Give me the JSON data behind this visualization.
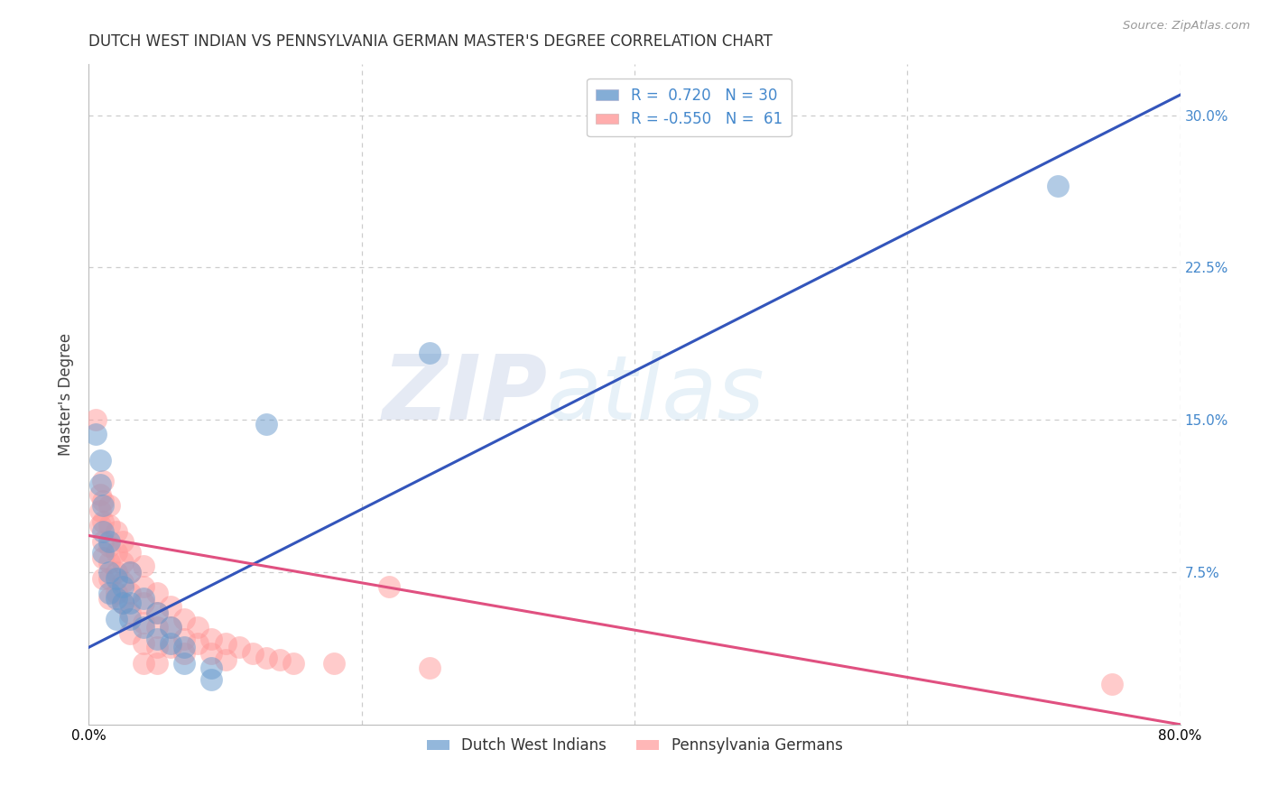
{
  "title": "DUTCH WEST INDIAN VS PENNSYLVANIA GERMAN MASTER'S DEGREE CORRELATION CHART",
  "source": "Source: ZipAtlas.com",
  "ylabel": "Master's Degree",
  "xlim": [
    0.0,
    0.8
  ],
  "ylim": [
    0.0,
    0.325
  ],
  "xticks": [
    0.0,
    0.2,
    0.4,
    0.6,
    0.8
  ],
  "xtick_labels": [
    "0.0%",
    "",
    "",
    "",
    "80.0%"
  ],
  "yticks": [
    0.0,
    0.075,
    0.15,
    0.225,
    0.3
  ],
  "ytick_labels": [
    "",
    "7.5%",
    "15.0%",
    "22.5%",
    "30.0%"
  ],
  "legend_label1": "R =  0.720   N = 30",
  "legend_label2": "R = -0.550   N =  61",
  "legend_label_bottom1": "Dutch West Indians",
  "legend_label_bottom2": "Pennsylvania Germans",
  "blue_color": "#6699CC",
  "pink_color": "#FF9999",
  "line_blue": "#3355BB",
  "line_pink": "#E05080",
  "watermark_zip": "ZIP",
  "watermark_atlas": "atlas",
  "blue_points": [
    [
      0.005,
      0.143
    ],
    [
      0.008,
      0.13
    ],
    [
      0.008,
      0.118
    ],
    [
      0.01,
      0.108
    ],
    [
      0.01,
      0.095
    ],
    [
      0.01,
      0.085
    ],
    [
      0.015,
      0.09
    ],
    [
      0.015,
      0.075
    ],
    [
      0.015,
      0.065
    ],
    [
      0.02,
      0.072
    ],
    [
      0.02,
      0.062
    ],
    [
      0.02,
      0.052
    ],
    [
      0.025,
      0.068
    ],
    [
      0.025,
      0.06
    ],
    [
      0.03,
      0.075
    ],
    [
      0.03,
      0.06
    ],
    [
      0.03,
      0.052
    ],
    [
      0.04,
      0.062
    ],
    [
      0.04,
      0.048
    ],
    [
      0.05,
      0.055
    ],
    [
      0.05,
      0.042
    ],
    [
      0.06,
      0.048
    ],
    [
      0.06,
      0.04
    ],
    [
      0.07,
      0.038
    ],
    [
      0.07,
      0.03
    ],
    [
      0.09,
      0.028
    ],
    [
      0.09,
      0.022
    ],
    [
      0.13,
      0.148
    ],
    [
      0.25,
      0.183
    ],
    [
      0.71,
      0.265
    ]
  ],
  "pink_points": [
    [
      0.005,
      0.15
    ],
    [
      0.008,
      0.113
    ],
    [
      0.008,
      0.105
    ],
    [
      0.008,
      0.098
    ],
    [
      0.01,
      0.12
    ],
    [
      0.01,
      0.11
    ],
    [
      0.01,
      0.1
    ],
    [
      0.01,
      0.09
    ],
    [
      0.01,
      0.082
    ],
    [
      0.01,
      0.072
    ],
    [
      0.015,
      0.108
    ],
    [
      0.015,
      0.098
    ],
    [
      0.015,
      0.088
    ],
    [
      0.015,
      0.08
    ],
    [
      0.015,
      0.072
    ],
    [
      0.015,
      0.062
    ],
    [
      0.02,
      0.095
    ],
    [
      0.02,
      0.085
    ],
    [
      0.02,
      0.075
    ],
    [
      0.02,
      0.065
    ],
    [
      0.025,
      0.09
    ],
    [
      0.025,
      0.08
    ],
    [
      0.025,
      0.07
    ],
    [
      0.025,
      0.06
    ],
    [
      0.03,
      0.085
    ],
    [
      0.03,
      0.075
    ],
    [
      0.03,
      0.065
    ],
    [
      0.03,
      0.055
    ],
    [
      0.03,
      0.045
    ],
    [
      0.04,
      0.078
    ],
    [
      0.04,
      0.068
    ],
    [
      0.04,
      0.06
    ],
    [
      0.04,
      0.05
    ],
    [
      0.04,
      0.04
    ],
    [
      0.04,
      0.03
    ],
    [
      0.05,
      0.065
    ],
    [
      0.05,
      0.055
    ],
    [
      0.05,
      0.048
    ],
    [
      0.05,
      0.038
    ],
    [
      0.05,
      0.03
    ],
    [
      0.06,
      0.058
    ],
    [
      0.06,
      0.048
    ],
    [
      0.06,
      0.038
    ],
    [
      0.07,
      0.052
    ],
    [
      0.07,
      0.042
    ],
    [
      0.07,
      0.035
    ],
    [
      0.08,
      0.048
    ],
    [
      0.08,
      0.04
    ],
    [
      0.09,
      0.042
    ],
    [
      0.09,
      0.035
    ],
    [
      0.1,
      0.04
    ],
    [
      0.1,
      0.032
    ],
    [
      0.11,
      0.038
    ],
    [
      0.12,
      0.035
    ],
    [
      0.13,
      0.033
    ],
    [
      0.14,
      0.032
    ],
    [
      0.15,
      0.03
    ],
    [
      0.18,
      0.03
    ],
    [
      0.22,
      0.068
    ],
    [
      0.25,
      0.028
    ],
    [
      0.75,
      0.02
    ]
  ],
  "blue_line_x": [
    0.0,
    0.8
  ],
  "blue_line_y": [
    0.038,
    0.31
  ],
  "pink_line_x": [
    0.0,
    0.8
  ],
  "pink_line_y": [
    0.093,
    0.0
  ],
  "background_color": "#FFFFFF",
  "grid_color": "#CCCCCC",
  "tick_color_right": "#4488CC",
  "title_fontsize": 12,
  "label_fontsize": 12,
  "tick_fontsize": 11
}
